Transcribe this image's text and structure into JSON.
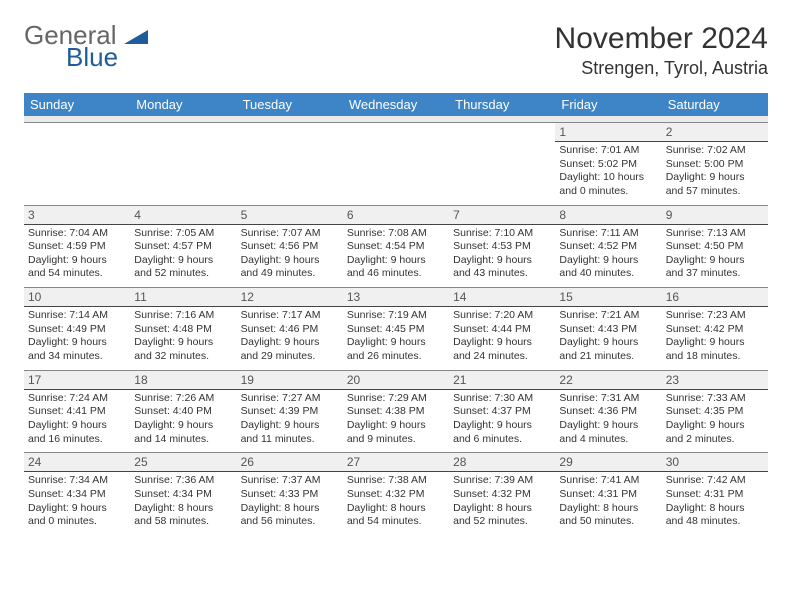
{
  "brand": {
    "line1": "General",
    "line2": "Blue",
    "icon": "triangle"
  },
  "title": "November 2024",
  "subtitle": "Strengen, Tyrol, Austria",
  "colors": {
    "header": "#3D85C6",
    "brandGray": "#666666",
    "brandBlue": "#1F5C99"
  },
  "dayHeaders": [
    "Sunday",
    "Monday",
    "Tuesday",
    "Wednesday",
    "Thursday",
    "Friday",
    "Saturday"
  ],
  "weeks": [
    [
      {
        "blank": true
      },
      {
        "blank": true
      },
      {
        "blank": true
      },
      {
        "blank": true
      },
      {
        "blank": true
      },
      {
        "n": "1",
        "sr": "Sunrise: 7:01 AM",
        "ss": "Sunset: 5:02 PM",
        "d1": "Daylight: 10 hours",
        "d2": "and 0 minutes."
      },
      {
        "n": "2",
        "sr": "Sunrise: 7:02 AM",
        "ss": "Sunset: 5:00 PM",
        "d1": "Daylight: 9 hours",
        "d2": "and 57 minutes."
      }
    ],
    [
      {
        "n": "3",
        "sr": "Sunrise: 7:04 AM",
        "ss": "Sunset: 4:59 PM",
        "d1": "Daylight: 9 hours",
        "d2": "and 54 minutes."
      },
      {
        "n": "4",
        "sr": "Sunrise: 7:05 AM",
        "ss": "Sunset: 4:57 PM",
        "d1": "Daylight: 9 hours",
        "d2": "and 52 minutes."
      },
      {
        "n": "5",
        "sr": "Sunrise: 7:07 AM",
        "ss": "Sunset: 4:56 PM",
        "d1": "Daylight: 9 hours",
        "d2": "and 49 minutes."
      },
      {
        "n": "6",
        "sr": "Sunrise: 7:08 AM",
        "ss": "Sunset: 4:54 PM",
        "d1": "Daylight: 9 hours",
        "d2": "and 46 minutes."
      },
      {
        "n": "7",
        "sr": "Sunrise: 7:10 AM",
        "ss": "Sunset: 4:53 PM",
        "d1": "Daylight: 9 hours",
        "d2": "and 43 minutes."
      },
      {
        "n": "8",
        "sr": "Sunrise: 7:11 AM",
        "ss": "Sunset: 4:52 PM",
        "d1": "Daylight: 9 hours",
        "d2": "and 40 minutes."
      },
      {
        "n": "9",
        "sr": "Sunrise: 7:13 AM",
        "ss": "Sunset: 4:50 PM",
        "d1": "Daylight: 9 hours",
        "d2": "and 37 minutes."
      }
    ],
    [
      {
        "n": "10",
        "sr": "Sunrise: 7:14 AM",
        "ss": "Sunset: 4:49 PM",
        "d1": "Daylight: 9 hours",
        "d2": "and 34 minutes."
      },
      {
        "n": "11",
        "sr": "Sunrise: 7:16 AM",
        "ss": "Sunset: 4:48 PM",
        "d1": "Daylight: 9 hours",
        "d2": "and 32 minutes."
      },
      {
        "n": "12",
        "sr": "Sunrise: 7:17 AM",
        "ss": "Sunset: 4:46 PM",
        "d1": "Daylight: 9 hours",
        "d2": "and 29 minutes."
      },
      {
        "n": "13",
        "sr": "Sunrise: 7:19 AM",
        "ss": "Sunset: 4:45 PM",
        "d1": "Daylight: 9 hours",
        "d2": "and 26 minutes."
      },
      {
        "n": "14",
        "sr": "Sunrise: 7:20 AM",
        "ss": "Sunset: 4:44 PM",
        "d1": "Daylight: 9 hours",
        "d2": "and 24 minutes."
      },
      {
        "n": "15",
        "sr": "Sunrise: 7:21 AM",
        "ss": "Sunset: 4:43 PM",
        "d1": "Daylight: 9 hours",
        "d2": "and 21 minutes."
      },
      {
        "n": "16",
        "sr": "Sunrise: 7:23 AM",
        "ss": "Sunset: 4:42 PM",
        "d1": "Daylight: 9 hours",
        "d2": "and 18 minutes."
      }
    ],
    [
      {
        "n": "17",
        "sr": "Sunrise: 7:24 AM",
        "ss": "Sunset: 4:41 PM",
        "d1": "Daylight: 9 hours",
        "d2": "and 16 minutes."
      },
      {
        "n": "18",
        "sr": "Sunrise: 7:26 AM",
        "ss": "Sunset: 4:40 PM",
        "d1": "Daylight: 9 hours",
        "d2": "and 14 minutes."
      },
      {
        "n": "19",
        "sr": "Sunrise: 7:27 AM",
        "ss": "Sunset: 4:39 PM",
        "d1": "Daylight: 9 hours",
        "d2": "and 11 minutes."
      },
      {
        "n": "20",
        "sr": "Sunrise: 7:29 AM",
        "ss": "Sunset: 4:38 PM",
        "d1": "Daylight: 9 hours",
        "d2": "and 9 minutes."
      },
      {
        "n": "21",
        "sr": "Sunrise: 7:30 AM",
        "ss": "Sunset: 4:37 PM",
        "d1": "Daylight: 9 hours",
        "d2": "and 6 minutes."
      },
      {
        "n": "22",
        "sr": "Sunrise: 7:31 AM",
        "ss": "Sunset: 4:36 PM",
        "d1": "Daylight: 9 hours",
        "d2": "and 4 minutes."
      },
      {
        "n": "23",
        "sr": "Sunrise: 7:33 AM",
        "ss": "Sunset: 4:35 PM",
        "d1": "Daylight: 9 hours",
        "d2": "and 2 minutes."
      }
    ],
    [
      {
        "n": "24",
        "sr": "Sunrise: 7:34 AM",
        "ss": "Sunset: 4:34 PM",
        "d1": "Daylight: 9 hours",
        "d2": "and 0 minutes."
      },
      {
        "n": "25",
        "sr": "Sunrise: 7:36 AM",
        "ss": "Sunset: 4:34 PM",
        "d1": "Daylight: 8 hours",
        "d2": "and 58 minutes."
      },
      {
        "n": "26",
        "sr": "Sunrise: 7:37 AM",
        "ss": "Sunset: 4:33 PM",
        "d1": "Daylight: 8 hours",
        "d2": "and 56 minutes."
      },
      {
        "n": "27",
        "sr": "Sunrise: 7:38 AM",
        "ss": "Sunset: 4:32 PM",
        "d1": "Daylight: 8 hours",
        "d2": "and 54 minutes."
      },
      {
        "n": "28",
        "sr": "Sunrise: 7:39 AM",
        "ss": "Sunset: 4:32 PM",
        "d1": "Daylight: 8 hours",
        "d2": "and 52 minutes."
      },
      {
        "n": "29",
        "sr": "Sunrise: 7:41 AM",
        "ss": "Sunset: 4:31 PM",
        "d1": "Daylight: 8 hours",
        "d2": "and 50 minutes."
      },
      {
        "n": "30",
        "sr": "Sunrise: 7:42 AM",
        "ss": "Sunset: 4:31 PM",
        "d1": "Daylight: 8 hours",
        "d2": "and 48 minutes."
      }
    ]
  ]
}
